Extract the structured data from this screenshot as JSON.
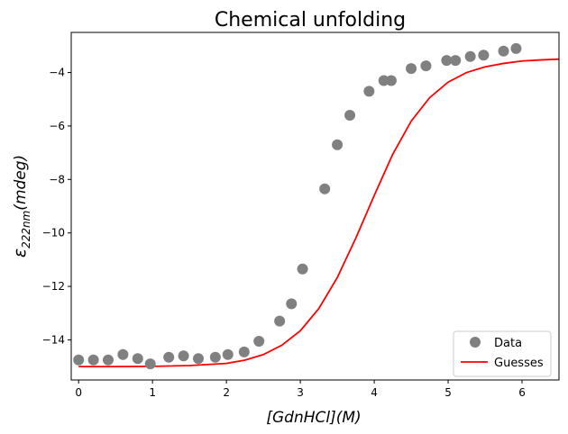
{
  "chart_data": {
    "type": "scatter",
    "title": "Chemical unfolding",
    "xlabel": "[GdnHCl](M)",
    "ylabel_main": "ε",
    "ylabel_sub": "222nm",
    "ylabel_rest": "(mdeg)",
    "xlim": [
      -0.1,
      6.5
    ],
    "ylim": [
      -15.5,
      -2.5
    ],
    "xticks": [
      0,
      1,
      2,
      3,
      4,
      5,
      6
    ],
    "xtick_labels": [
      "0",
      "1",
      "2",
      "3",
      "4",
      "5",
      "6"
    ],
    "yticks": [
      -14,
      -12,
      -10,
      -8,
      -6,
      -4
    ],
    "ytick_labels": [
      "−14",
      "−12",
      "−10",
      "−8",
      "−6",
      "−4"
    ],
    "grid": false,
    "legend_position": "bottom-right",
    "series": [
      {
        "name": "Data",
        "kind": "markers",
        "color": "#808080",
        "x": [
          0.0,
          0.2,
          0.4,
          0.6,
          0.8,
          0.97,
          1.22,
          1.42,
          1.62,
          1.85,
          2.02,
          2.24,
          2.44,
          2.72,
          2.88,
          3.03,
          3.33,
          3.5,
          3.67,
          3.93,
          4.13,
          4.23,
          4.5,
          4.7,
          4.98,
          5.1,
          5.3,
          5.48,
          5.75,
          5.92
        ],
        "y": [
          -14.75,
          -14.75,
          -14.75,
          -14.55,
          -14.7,
          -14.9,
          -14.65,
          -14.6,
          -14.7,
          -14.65,
          -14.55,
          -14.45,
          -14.05,
          -13.3,
          -12.65,
          -11.35,
          -8.35,
          -6.7,
          -5.6,
          -4.7,
          -4.3,
          -4.3,
          -3.85,
          -3.75,
          -3.55,
          -3.55,
          -3.4,
          -3.35,
          -3.2,
          -3.1
        ]
      },
      {
        "name": "Guesses",
        "kind": "line",
        "color": "#ff0000",
        "x": [
          0.0,
          0.5,
          1.0,
          1.5,
          2.0,
          2.25,
          2.5,
          2.75,
          3.0,
          3.25,
          3.5,
          3.75,
          4.0,
          4.25,
          4.5,
          4.75,
          5.0,
          5.25,
          5.5,
          5.75,
          6.0,
          6.25,
          6.5
        ],
        "y": [
          -15.0,
          -15.0,
          -14.99,
          -14.96,
          -14.88,
          -14.76,
          -14.55,
          -14.2,
          -13.66,
          -12.83,
          -11.67,
          -10.2,
          -8.6,
          -7.06,
          -5.82,
          -4.94,
          -4.36,
          -4.0,
          -3.79,
          -3.66,
          -3.57,
          -3.53,
          -3.5
        ]
      }
    ]
  }
}
